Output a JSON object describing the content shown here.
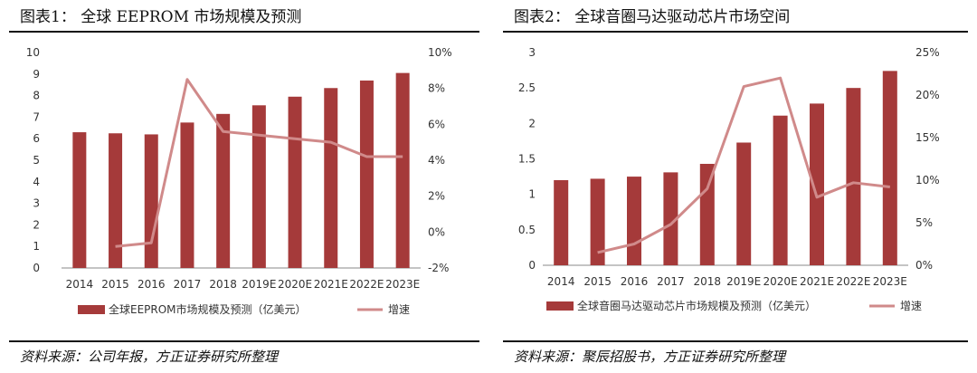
{
  "colors": {
    "bar": "#a53a3a",
    "line": "#d08a8a",
    "axis": "#888888"
  },
  "charts": [
    {
      "figure_title": "图表1：  全球 EEPROM 市场规模及预测",
      "source": "资料来源：公司年报，方正证券研究所整理",
      "chart_data": {
        "type": "bar",
        "categories": [
          "2014",
          "2015",
          "2016",
          "2017",
          "2018",
          "2019E",
          "2020E",
          "2021E",
          "2022E",
          "2023E"
        ],
        "series": [
          {
            "name": "全球EEPROM市场规模及预测（亿美元）",
            "type": "bar",
            "axis": "left",
            "values": [
              6.3,
              6.25,
              6.2,
              6.75,
              7.15,
              7.55,
              7.95,
              8.35,
              8.7,
              9.05
            ]
          },
          {
            "name": "增速",
            "type": "line",
            "axis": "right",
            "values": [
              null,
              -0.8,
              -0.6,
              8.5,
              5.6,
              5.4,
              5.2,
              5.0,
              4.2,
              4.2
            ]
          }
        ],
        "yleft": {
          "min": 0,
          "max": 10,
          "ticks": [
            0,
            1,
            2,
            3,
            4,
            5,
            6,
            7,
            8,
            9,
            10
          ],
          "labels": [
            "0",
            "1",
            "2",
            "3",
            "4",
            "5",
            "6",
            "7",
            "8",
            "9",
            "10"
          ]
        },
        "yright": {
          "min": -2,
          "max": 10,
          "ticks": [
            -2,
            0,
            2,
            4,
            6,
            8,
            10
          ],
          "labels": [
            "-2%",
            "0%",
            "2%",
            "4%",
            "6%",
            "8%",
            "10%"
          ]
        },
        "legend_position": "bottom"
      }
    },
    {
      "figure_title": "图表2：  全球音圈马达驱动芯片市场空间",
      "source": "资料来源：聚辰招股书，方正证券研究所整理",
      "chart_data": {
        "type": "bar",
        "categories": [
          "2014",
          "2015",
          "2016",
          "2017",
          "2018",
          "2019E",
          "2020E",
          "2021E",
          "2022E",
          "2023E"
        ],
        "series": [
          {
            "name": "全球音圈马达驱动芯片市场规模及预测（亿美元）",
            "type": "bar",
            "axis": "left",
            "values": [
              1.2,
              1.22,
              1.25,
              1.31,
              1.43,
              1.73,
              2.11,
              2.28,
              2.5,
              2.74
            ]
          },
          {
            "name": "增速",
            "type": "line",
            "axis": "right",
            "values": [
              null,
              1.5,
              2.5,
              4.8,
              9.0,
              21.0,
              22.0,
              8.0,
              9.7,
              9.2
            ]
          }
        ],
        "yleft": {
          "min": 0,
          "max": 3,
          "ticks": [
            0,
            0.5,
            1,
            1.5,
            2,
            2.5,
            3
          ],
          "labels": [
            "0",
            "0.5",
            "1",
            "1.5",
            "2",
            "2.5",
            "3"
          ]
        },
        "yright": {
          "min": 0,
          "max": 25,
          "ticks": [
            0,
            5,
            10,
            15,
            20,
            25
          ],
          "labels": [
            "0%",
            "5%",
            "10%",
            "15%",
            "20%",
            "25%"
          ]
        },
        "legend_position": "bottom"
      }
    }
  ]
}
